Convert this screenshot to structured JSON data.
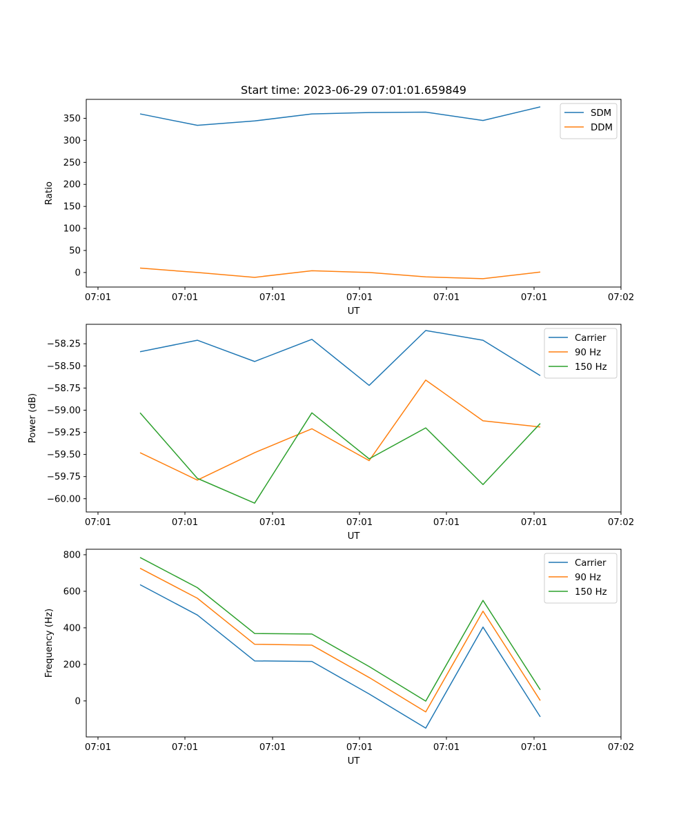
{
  "figure": {
    "title": "Start time: 2023-06-29 07:01:01.659849"
  },
  "chart_data": [
    {
      "type": "line",
      "xlabel": "UT",
      "ylabel": "Ratio",
      "x_tick_labels": [
        "07:01",
        "07:01",
        "07:01",
        "07:01",
        "07:01",
        "07:01",
        "07:02"
      ],
      "yticks": [
        0,
        50,
        100,
        150,
        200,
        250,
        300,
        350
      ],
      "ylim": [
        -33,
        393
      ],
      "legend_position": "upper right",
      "series": [
        {
          "name": "SDM",
          "color": "#1f77b4",
          "values": [
            360,
            334,
            344,
            360,
            363,
            364,
            345,
            376
          ]
        },
        {
          "name": "DDM",
          "color": "#ff7f0e",
          "values": [
            10,
            0,
            -11,
            4,
            0,
            -10,
            -14,
            1
          ]
        }
      ]
    },
    {
      "type": "line",
      "xlabel": "UT",
      "ylabel": "Power (dB)",
      "x_tick_labels": [
        "07:01",
        "07:01",
        "07:01",
        "07:01",
        "07:01",
        "07:01",
        "07:02"
      ],
      "yticks": [
        -60.0,
        -59.75,
        -59.5,
        -59.25,
        -59.0,
        -58.75,
        -58.5,
        -58.25
      ],
      "ytick_labels": [
        "−60.00",
        "−59.75",
        "−59.50",
        "−59.25",
        "−59.00",
        "−58.75",
        "−58.50",
        "−58.25"
      ],
      "ylim": [
        -60.15,
        -58.03
      ],
      "legend_position": "upper right",
      "series": [
        {
          "name": "Carrier",
          "color": "#1f77b4",
          "values": [
            -58.34,
            -58.21,
            -58.45,
            -58.2,
            -58.72,
            -58.1,
            -58.21,
            -58.61
          ]
        },
        {
          "name": "90 Hz",
          "color": "#ff7f0e",
          "values": [
            -59.48,
            -59.79,
            -59.48,
            -59.21,
            -59.57,
            -58.66,
            -59.12,
            -59.19
          ]
        },
        {
          "name": "150 Hz",
          "color": "#2ca02c",
          "values": [
            -59.03,
            -59.77,
            -60.05,
            -59.03,
            -59.55,
            -59.2,
            -59.84,
            -59.15
          ]
        }
      ]
    },
    {
      "type": "line",
      "xlabel": "UT",
      "ylabel": "Frequency (Hz)",
      "x_tick_labels": [
        "07:01",
        "07:01",
        "07:01",
        "07:01",
        "07:01",
        "07:01",
        "07:02"
      ],
      "yticks": [
        0,
        200,
        400,
        600,
        800
      ],
      "ylim": [
        -197,
        830
      ],
      "legend_position": "upper right",
      "series": [
        {
          "name": "Carrier",
          "color": "#1f77b4",
          "values": [
            636,
            470,
            219,
            216,
            38,
            -149,
            404,
            -87
          ]
        },
        {
          "name": "90 Hz",
          "color": "#ff7f0e",
          "values": [
            726,
            562,
            310,
            305,
            128,
            -60,
            491,
            2
          ]
        },
        {
          "name": "150 Hz",
          "color": "#2ca02c",
          "values": [
            785,
            620,
            369,
            366,
            188,
            -1,
            550,
            61
          ]
        }
      ]
    }
  ]
}
